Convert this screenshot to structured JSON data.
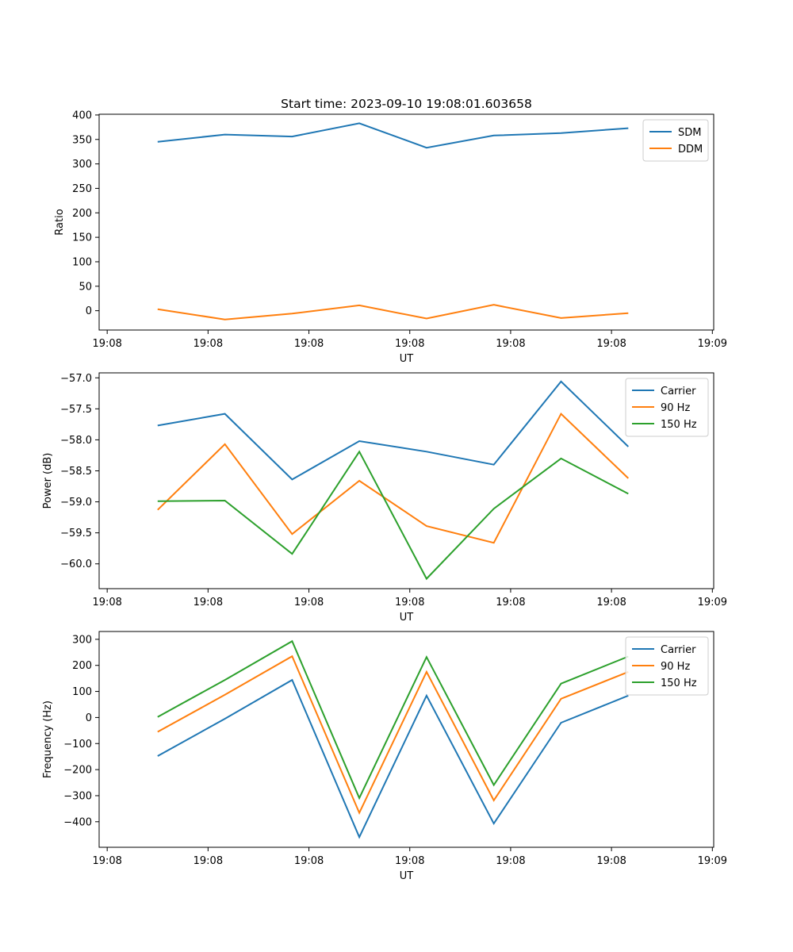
{
  "figure": {
    "title": "Start time: 2023-09-10 19:08:01.603658"
  },
  "x_tick_labels": [
    "19:08",
    "19:08",
    "19:08",
    "19:08",
    "19:08",
    "19:08",
    "19:09"
  ],
  "chart_data": [
    {
      "type": "line",
      "title": "Start time: 2023-09-10 19:08:01.603658",
      "xlabel": "UT",
      "ylabel": "Ratio",
      "x": [
        1,
        2,
        3,
        4,
        5,
        6,
        7,
        8
      ],
      "xlim": [
        0.13,
        9.27
      ],
      "ylim": [
        -39.5,
        401.5
      ],
      "yticks": [
        0,
        50,
        100,
        150,
        200,
        250,
        300,
        350,
        400
      ],
      "ytick_labels": [
        "0",
        "50",
        "100",
        "150",
        "200",
        "250",
        "300",
        "350",
        "400"
      ],
      "legend": "top-right",
      "series": [
        {
          "name": "SDM",
          "color": "#1f77b4",
          "values": [
            345,
            360,
            356,
            383,
            333,
            358,
            363,
            373
          ]
        },
        {
          "name": "DDM",
          "color": "#ff7f0e",
          "values": [
            3,
            -18,
            -6,
            11,
            -16,
            12,
            -15,
            -5
          ]
        }
      ]
    },
    {
      "type": "line",
      "xlabel": "UT",
      "ylabel": "Power (dB)",
      "x": [
        1,
        2,
        3,
        4,
        5,
        6,
        7,
        8
      ],
      "xlim": [
        0.13,
        9.27
      ],
      "ylim": [
        -60.4,
        -56.92
      ],
      "yticks": [
        -60.0,
        -59.5,
        -59.0,
        -58.5,
        -58.0,
        -57.5,
        -57.0
      ],
      "ytick_labels": [
        "−60.0",
        "−59.5",
        "−59.0",
        "−58.5",
        "−58.0",
        "−57.5",
        "−57.0"
      ],
      "legend": "top-right",
      "series": [
        {
          "name": "Carrier",
          "color": "#1f77b4",
          "values": [
            -57.77,
            -57.58,
            -58.64,
            -58.02,
            -58.19,
            -58.4,
            -57.06,
            -58.11
          ]
        },
        {
          "name": "90 Hz",
          "color": "#ff7f0e",
          "values": [
            -59.13,
            -58.07,
            -59.52,
            -58.66,
            -59.39,
            -59.66,
            -57.58,
            -58.62
          ]
        },
        {
          "name": "150 Hz",
          "color": "#2ca02c",
          "values": [
            -58.99,
            -58.98,
            -59.84,
            -58.19,
            -60.24,
            -59.11,
            -58.3,
            -58.87
          ]
        }
      ]
    },
    {
      "type": "line",
      "xlabel": "UT",
      "ylabel": "Frequency (Hz)",
      "x": [
        1,
        2,
        3,
        4,
        5,
        6,
        7,
        8
      ],
      "xlim": [
        0.13,
        9.27
      ],
      "ylim": [
        -498,
        330
      ],
      "yticks": [
        -400,
        -300,
        -200,
        -100,
        0,
        100,
        200,
        300
      ],
      "ytick_labels": [
        "−400",
        "−300",
        "−200",
        "−100",
        "0",
        "100",
        "200",
        "300"
      ],
      "legend": "top-right",
      "series": [
        {
          "name": "Carrier",
          "color": "#1f77b4",
          "values": [
            -148,
            -5,
            144,
            -459,
            84,
            -407,
            -20,
            84
          ]
        },
        {
          "name": "90 Hz",
          "color": "#ff7f0e",
          "values": [
            -55,
            87,
            235,
            -366,
            175,
            -318,
            72,
            175
          ]
        },
        {
          "name": "150 Hz",
          "color": "#2ca02c",
          "values": [
            2,
            144,
            293,
            -309,
            232,
            -259,
            130,
            234
          ]
        }
      ]
    }
  ]
}
